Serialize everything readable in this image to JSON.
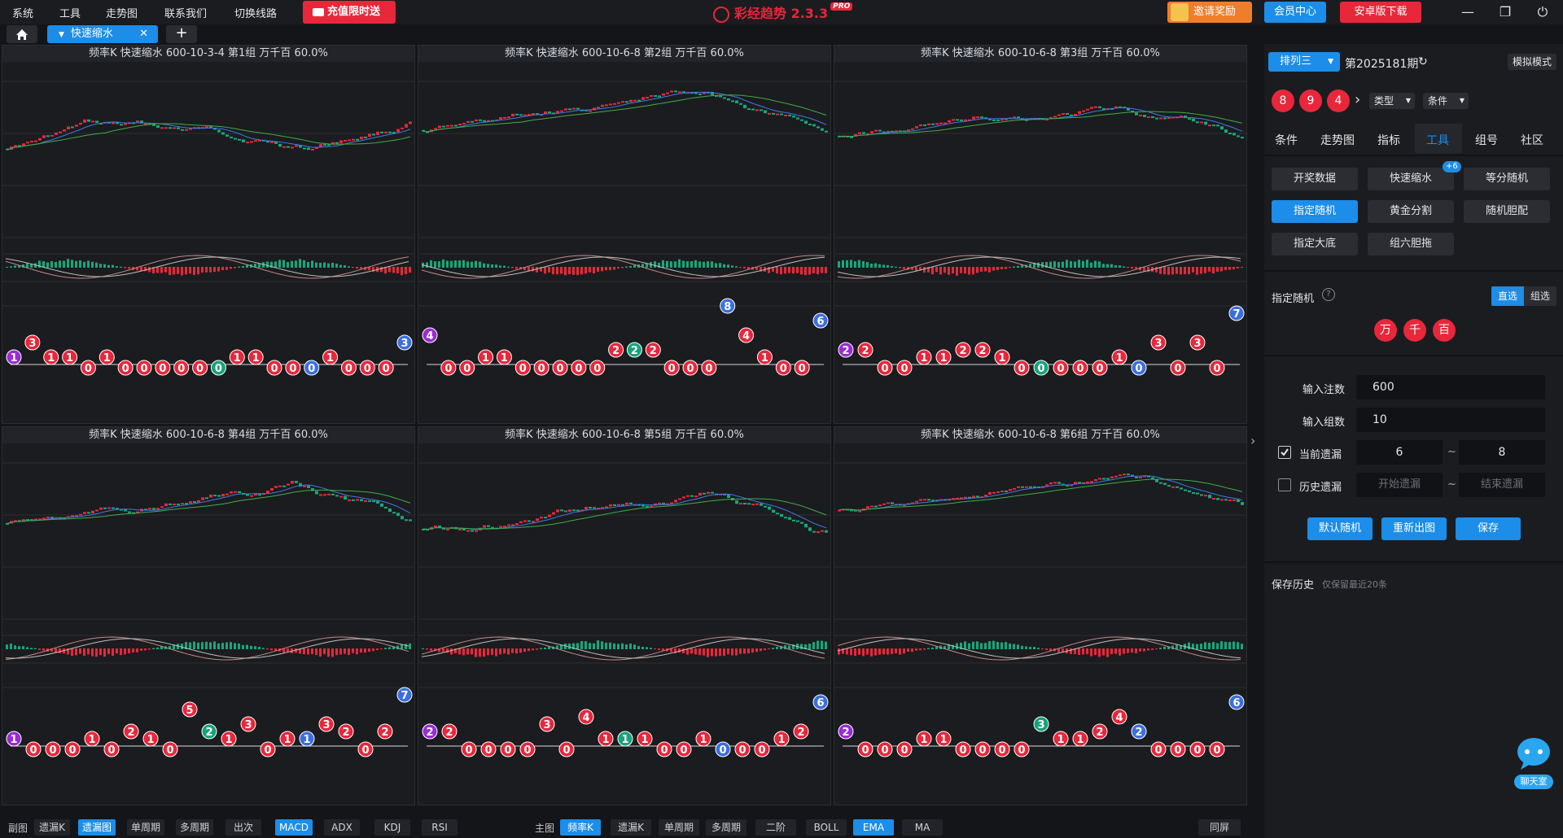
{
  "titlebar": {
    "menu": [
      "系统",
      "工具",
      "走势图",
      "联系我们",
      "切换线路"
    ],
    "recharge_label": "充值限时送",
    "app_name": "彩经趋势 2.3.3",
    "app_badge": "PRO",
    "invite_label": "邀请奖励",
    "member_label": "会员中心",
    "android_label": "安卓版下载"
  },
  "tabs": {
    "active_label": "快速缩水",
    "home_icon": "home-icon",
    "add_icon": "plus-icon"
  },
  "charts": [
    {
      "title": "频率K  快速缩水  600-10-3-4 第1组  万千百  60.0%",
      "balls": [
        [
          1,
          "purple"
        ],
        [
          3,
          "red"
        ],
        [
          1,
          "red"
        ],
        [
          1,
          "red"
        ],
        [
          0,
          "red"
        ],
        [
          1,
          "red"
        ],
        [
          0,
          "red"
        ],
        [
          0,
          "red"
        ],
        [
          0,
          "red"
        ],
        [
          0,
          "red"
        ],
        [
          0,
          "red"
        ],
        [
          0,
          "green"
        ],
        [
          1,
          "red"
        ],
        [
          1,
          "red"
        ],
        [
          0,
          "red"
        ],
        [
          0,
          "red"
        ],
        [
          0,
          "blue"
        ],
        [
          1,
          "red"
        ],
        [
          0,
          "red"
        ],
        [
          0,
          "red"
        ],
        [
          0,
          "red"
        ],
        [
          3,
          "blue"
        ]
      ]
    },
    {
      "title": "频率K  快速缩水  600-10-6-8 第2组  万千百  60.0%",
      "balls": [
        [
          4,
          "purple"
        ],
        [
          0,
          "red"
        ],
        [
          0,
          "red"
        ],
        [
          1,
          "red"
        ],
        [
          1,
          "red"
        ],
        [
          0,
          "red"
        ],
        [
          0,
          "red"
        ],
        [
          0,
          "red"
        ],
        [
          0,
          "red"
        ],
        [
          0,
          "red"
        ],
        [
          2,
          "red"
        ],
        [
          2,
          "green"
        ],
        [
          2,
          "red"
        ],
        [
          0,
          "red"
        ],
        [
          0,
          "red"
        ],
        [
          0,
          "red"
        ],
        [
          8,
          "blue"
        ],
        [
          4,
          "red"
        ],
        [
          1,
          "red"
        ],
        [
          0,
          "red"
        ],
        [
          0,
          "red"
        ],
        [
          6,
          "blue"
        ]
      ]
    },
    {
      "title": "频率K  快速缩水  600-10-6-8 第3组  万千百  60.0%",
      "balls": [
        [
          2,
          "purple"
        ],
        [
          2,
          "red"
        ],
        [
          0,
          "red"
        ],
        [
          0,
          "red"
        ],
        [
          1,
          "red"
        ],
        [
          1,
          "red"
        ],
        [
          2,
          "red"
        ],
        [
          2,
          "red"
        ],
        [
          1,
          "red"
        ],
        [
          0,
          "red"
        ],
        [
          0,
          "green"
        ],
        [
          0,
          "red"
        ],
        [
          0,
          "red"
        ],
        [
          0,
          "red"
        ],
        [
          1,
          "red"
        ],
        [
          0,
          "blue"
        ],
        [
          3,
          "red"
        ],
        [
          0,
          "red"
        ],
        [
          3,
          "red"
        ],
        [
          0,
          "red"
        ],
        [
          7,
          "blue"
        ]
      ]
    },
    {
      "title": "频率K  快速缩水  600-10-6-8 第4组  万千百  60.0%",
      "balls": [
        [
          1,
          "purple"
        ],
        [
          0,
          "red"
        ],
        [
          0,
          "red"
        ],
        [
          0,
          "red"
        ],
        [
          1,
          "red"
        ],
        [
          0,
          "red"
        ],
        [
          2,
          "red"
        ],
        [
          1,
          "red"
        ],
        [
          0,
          "red"
        ],
        [
          5,
          "red"
        ],
        [
          2,
          "green"
        ],
        [
          1,
          "red"
        ],
        [
          3,
          "red"
        ],
        [
          0,
          "red"
        ],
        [
          1,
          "red"
        ],
        [
          1,
          "blue"
        ],
        [
          3,
          "red"
        ],
        [
          2,
          "red"
        ],
        [
          0,
          "red"
        ],
        [
          2,
          "red"
        ],
        [
          7,
          "blue"
        ]
      ]
    },
    {
      "title": "频率K  快速缩水  600-10-6-8 第5组  万千百  60.0%",
      "balls": [
        [
          2,
          "purple"
        ],
        [
          2,
          "red"
        ],
        [
          0,
          "red"
        ],
        [
          0,
          "red"
        ],
        [
          0,
          "red"
        ],
        [
          0,
          "red"
        ],
        [
          3,
          "red"
        ],
        [
          0,
          "red"
        ],
        [
          4,
          "red"
        ],
        [
          1,
          "red"
        ],
        [
          1,
          "green"
        ],
        [
          1,
          "red"
        ],
        [
          0,
          "red"
        ],
        [
          0,
          "red"
        ],
        [
          1,
          "red"
        ],
        [
          0,
          "blue"
        ],
        [
          0,
          "red"
        ],
        [
          0,
          "red"
        ],
        [
          1,
          "red"
        ],
        [
          2,
          "red"
        ],
        [
          6,
          "blue"
        ]
      ]
    },
    {
      "title": "频率K  快速缩水  600-10-6-8 第6组  万千百  60.0%",
      "balls": [
        [
          2,
          "purple"
        ],
        [
          0,
          "red"
        ],
        [
          0,
          "red"
        ],
        [
          0,
          "red"
        ],
        [
          1,
          "red"
        ],
        [
          1,
          "red"
        ],
        [
          0,
          "red"
        ],
        [
          0,
          "red"
        ],
        [
          0,
          "red"
        ],
        [
          0,
          "red"
        ],
        [
          3,
          "green"
        ],
        [
          1,
          "red"
        ],
        [
          1,
          "red"
        ],
        [
          2,
          "red"
        ],
        [
          4,
          "red"
        ],
        [
          2,
          "blue"
        ],
        [
          0,
          "red"
        ],
        [
          0,
          "red"
        ],
        [
          0,
          "red"
        ],
        [
          0,
          "red"
        ],
        [
          6,
          "blue"
        ]
      ]
    }
  ],
  "bottombar": {
    "sub_label": "副图",
    "sub_buttons": [
      [
        "遗漏K",
        false
      ],
      [
        "遗漏图",
        true
      ],
      [
        "单周期",
        false
      ],
      [
        "多周期",
        false
      ],
      [
        "出次",
        false
      ],
      [
        "MACD",
        true
      ],
      [
        "ADX",
        false
      ],
      [
        "KDJ",
        false
      ],
      [
        "RSI",
        false
      ]
    ],
    "main_label": "主图",
    "main_buttons": [
      [
        "频率K",
        true
      ],
      [
        "遗漏K",
        false
      ],
      [
        "单周期",
        false
      ],
      [
        "多周期",
        false
      ],
      [
        "二阶",
        false
      ],
      [
        "BOLL",
        false
      ],
      [
        "EMA",
        true
      ],
      [
        "MA",
        false
      ]
    ],
    "fullscreen_label": "同屏"
  },
  "right": {
    "lottery_select": "排列三",
    "period": "第2025181期",
    "simulate_label": "模拟模式",
    "draw_numbers": [
      "8",
      "9",
      "4"
    ],
    "type_select": "类型",
    "condition_select": "条件",
    "nav_tabs": [
      "条件",
      "走势图",
      "指标",
      "工具",
      "组号",
      "社区"
    ],
    "active_nav": "工具",
    "tools": [
      "开奖数据",
      "快速缩水",
      "等分随机",
      "指定随机",
      "黄金分割",
      "随机胆配",
      "指定大底",
      "组六胆拖"
    ],
    "tools_badge": "+6",
    "active_tool": "指定随机",
    "section_title": "指定随机",
    "mode_direct": "直选",
    "mode_group": "组选",
    "positions": [
      "万",
      "千",
      "百"
    ],
    "input_bets_label": "输入注数",
    "input_bets_value": "600",
    "input_groups_label": "输入组数",
    "input_groups_value": "10",
    "current_miss_label": "当前遗漏",
    "current_miss_from": "6",
    "current_miss_to": "8",
    "history_miss_label": "历史遗漏",
    "history_from_placeholder": "开始遗漏",
    "history_to_placeholder": "结束遗漏",
    "tilde": "~",
    "btn_default": "默认随机",
    "btn_redraw": "重新出图",
    "btn_save": "保存",
    "history_title": "保存历史",
    "history_note": "仅保留最近20条",
    "chat_label": "聊天室"
  },
  "colors": {
    "accent": "#1c8de8",
    "red": "#e8273b",
    "up": "#e8273b",
    "down": "#16a87c"
  }
}
